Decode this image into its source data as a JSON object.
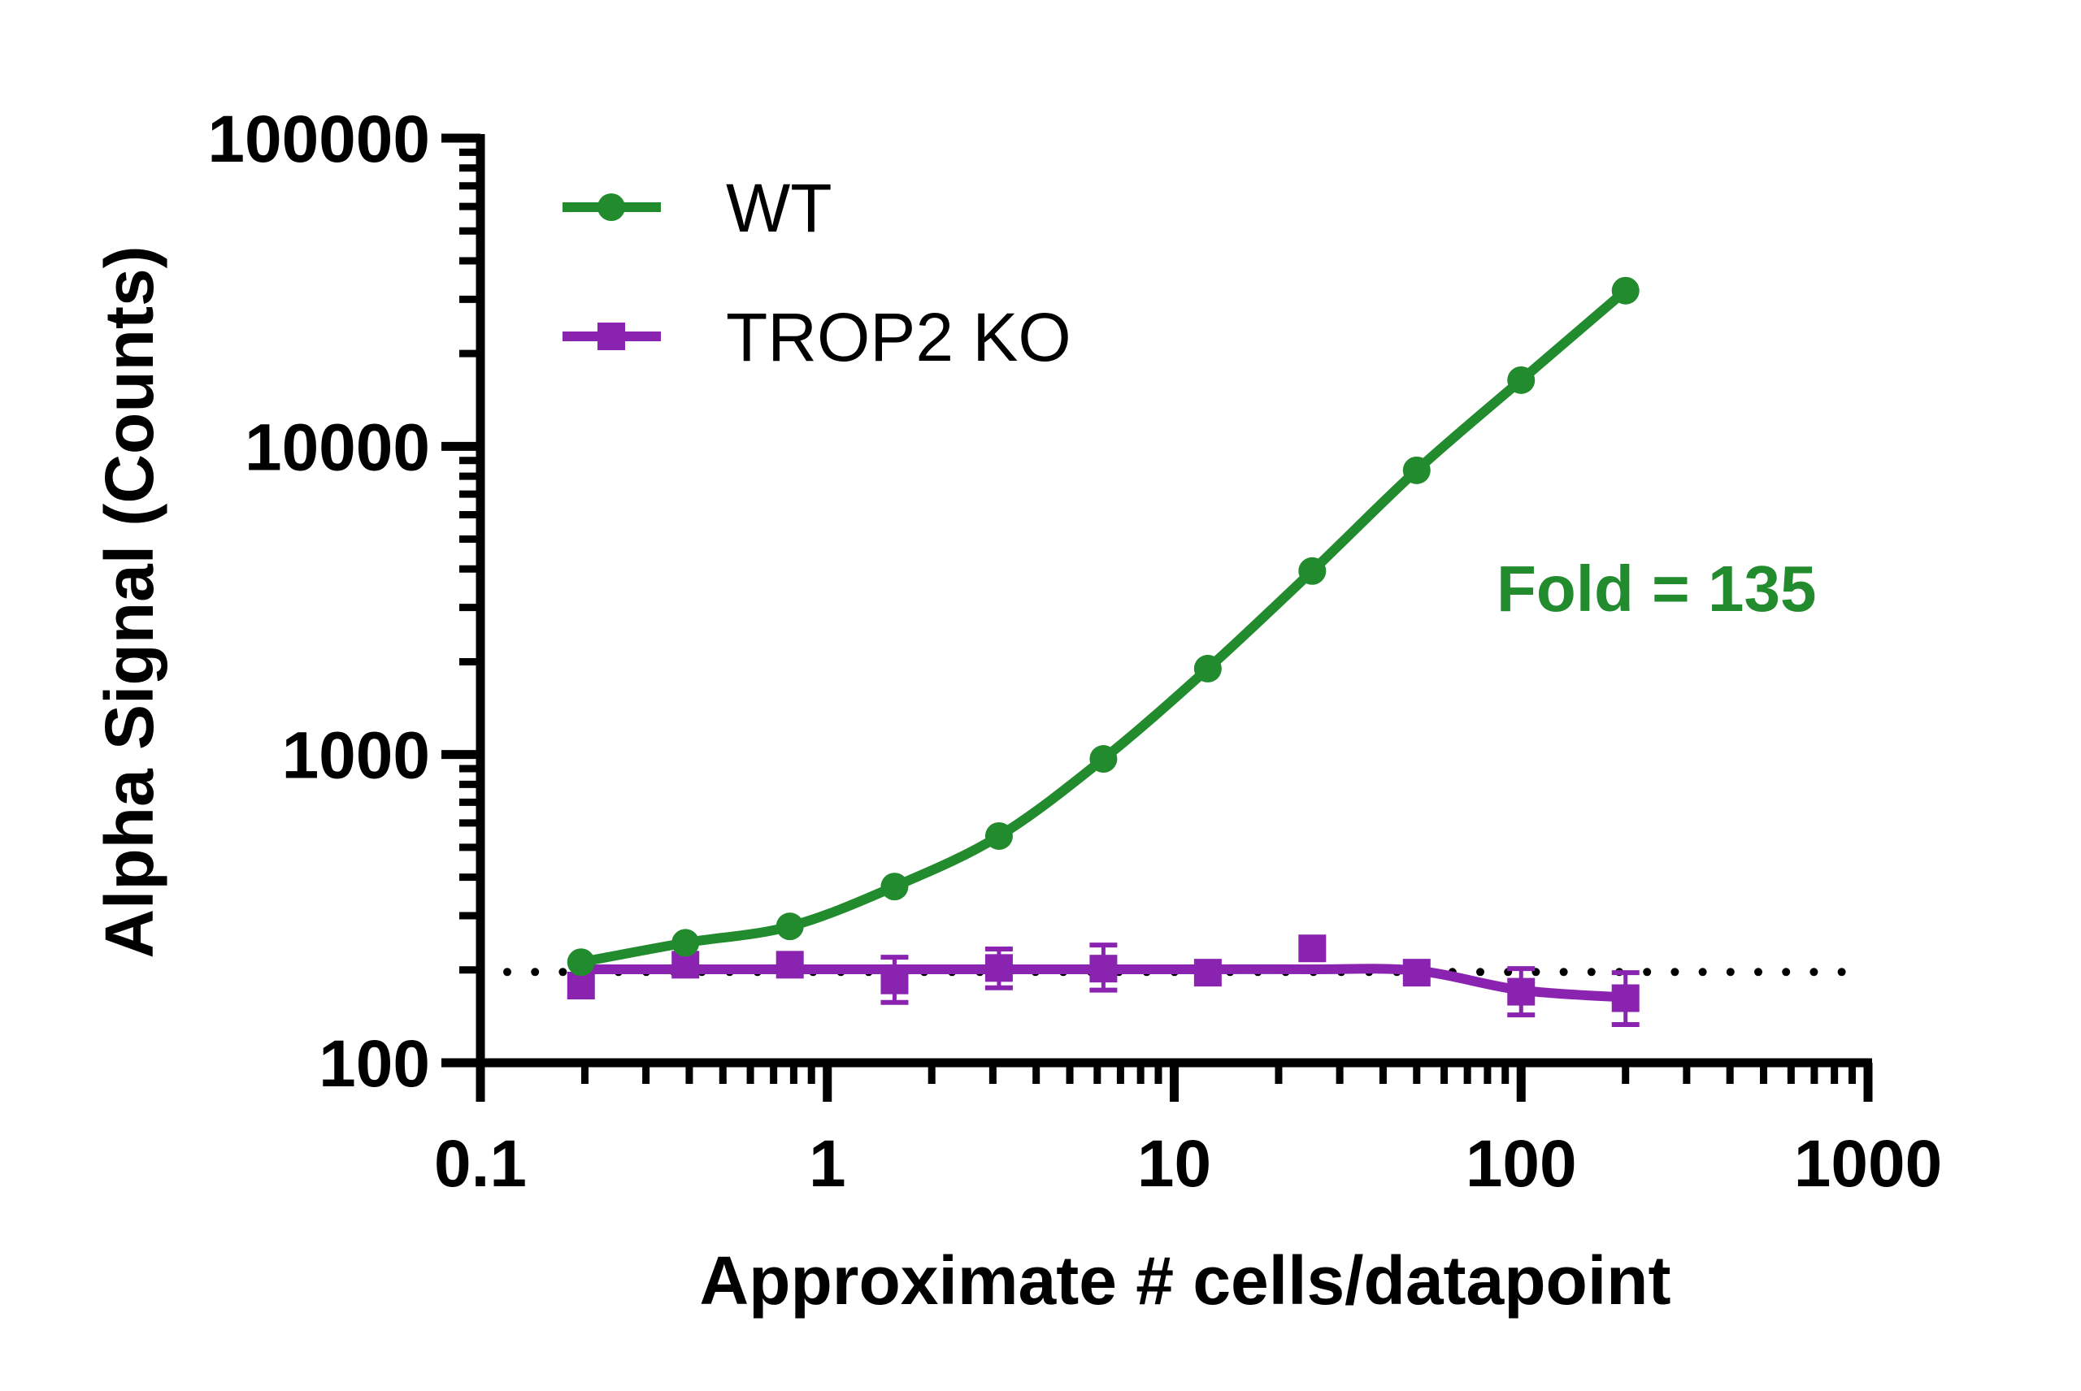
{
  "chart_data": {
    "type": "line",
    "title": "",
    "xlabel": "Approximate # cells/datapoint",
    "ylabel": "Alpha Signal (Counts)",
    "xscale": "log",
    "yscale": "log",
    "xlim": [
      0.1,
      1000
    ],
    "ylim": [
      100,
      100000
    ],
    "xticks": [
      0.1,
      1,
      10,
      100,
      1000
    ],
    "xtick_labels": [
      "0.1",
      "1",
      "10",
      "100",
      "1000"
    ],
    "yticks": [
      100,
      1000,
      10000,
      100000
    ],
    "ytick_labels": [
      "100",
      "1000",
      "10000",
      "100000"
    ],
    "grid": false,
    "legend_position": "top-left",
    "x": [
      0.195,
      0.39,
      0.78,
      1.5625,
      3.125,
      6.25,
      12.5,
      25,
      50,
      100,
      200
    ],
    "series": [
      {
        "name": "WT",
        "color": "#228B2D",
        "marker": "circle",
        "values": [
          212,
          245,
          277,
          373,
          544,
          968,
          1900,
          3940,
          8360,
          16400,
          32000
        ],
        "error": null
      },
      {
        "name": "TROP2 KO",
        "color": "#8A24B0",
        "marker": "square",
        "values": [
          178,
          208,
          208,
          185,
          203,
          202,
          196,
          235,
          196,
          170,
          162
        ],
        "error_low": [
          null,
          null,
          null,
          157,
          175,
          172,
          null,
          null,
          null,
          143,
          133
        ],
        "error_high": [
          null,
          null,
          null,
          220,
          234,
          241,
          null,
          null,
          null,
          202,
          196
        ],
        "fit_values": [
          201,
          201,
          201,
          201,
          201,
          201,
          201,
          201,
          199,
          172,
          163
        ]
      }
    ],
    "reference_line": {
      "y": 197,
      "style": "dotted",
      "color": "#000000"
    },
    "annotations": [
      {
        "text": "Fold = 135",
        "color": "#228B2D",
        "near": "right-middle"
      }
    ]
  }
}
